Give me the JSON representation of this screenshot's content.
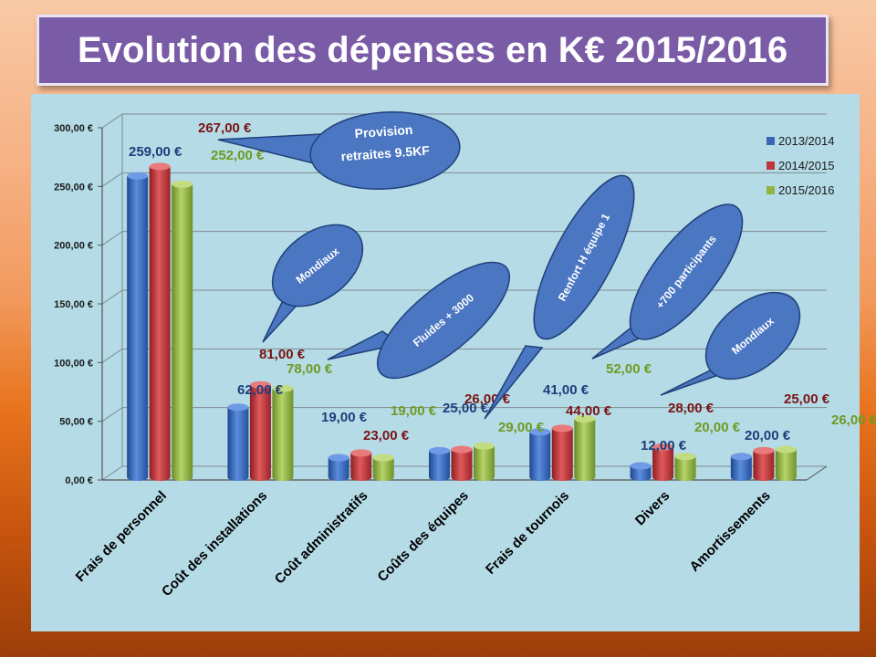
{
  "title": "Evolution des dépenses en K€  2015/2016",
  "colors": {
    "series_2013": "#3a66b4",
    "series_2014": "#c0363a",
    "series_2015": "#92b441",
    "label_2013": "#1f3d7a",
    "label_2014": "#7a1414",
    "label_2015": "#6f9a22",
    "bubble": "#4a76c2",
    "bubble_stroke": "#20407a"
  },
  "callouts": [
    "Provision retraites 9.5KF",
    "Mondiaux",
    "Fluides + 3000",
    "Renfort H équipe 1",
    "+700 participants",
    "Mondiaux"
  ],
  "chart_data": {
    "type": "bar",
    "categories": [
      "Frais de personnel",
      "Coût des installations",
      "Coût administratifs",
      "Coûts des équipes",
      "Frais de tournois",
      "Divers",
      "Amortissements"
    ],
    "series": [
      {
        "name": "2013/2014",
        "values": [
          259,
          62,
          19,
          25,
          41,
          12,
          20
        ],
        "labels": [
          "259,00 €",
          "62,00 €",
          "19,00 €",
          "25,00 €",
          "41,00 €",
          "12,00 €",
          "20,00 €"
        ]
      },
      {
        "name": "2014/2015",
        "values": [
          267,
          81,
          23,
          26,
          44,
          28,
          25
        ],
        "labels": [
          "267,00 €",
          "81,00 €",
          "23,00 €",
          "26,00 €",
          "44,00 €",
          "28,00 €",
          "25,00 €"
        ]
      },
      {
        "name": "2015/2016",
        "values": [
          252,
          78,
          19,
          29,
          52,
          20,
          26
        ],
        "labels": [
          "252,00 €",
          "78,00 €",
          "19,00 €",
          "29,00 €",
          "52,00 €",
          "20,00 €",
          "26,00 €"
        ]
      }
    ],
    "ytick_labels": [
      "0,00 €",
      "50,00 €",
      "100,00 €",
      "150,00 €",
      "200,00 €",
      "250,00 €",
      "300,00 €"
    ],
    "ylim": [
      0,
      300
    ],
    "grid": true,
    "legend": "right"
  }
}
